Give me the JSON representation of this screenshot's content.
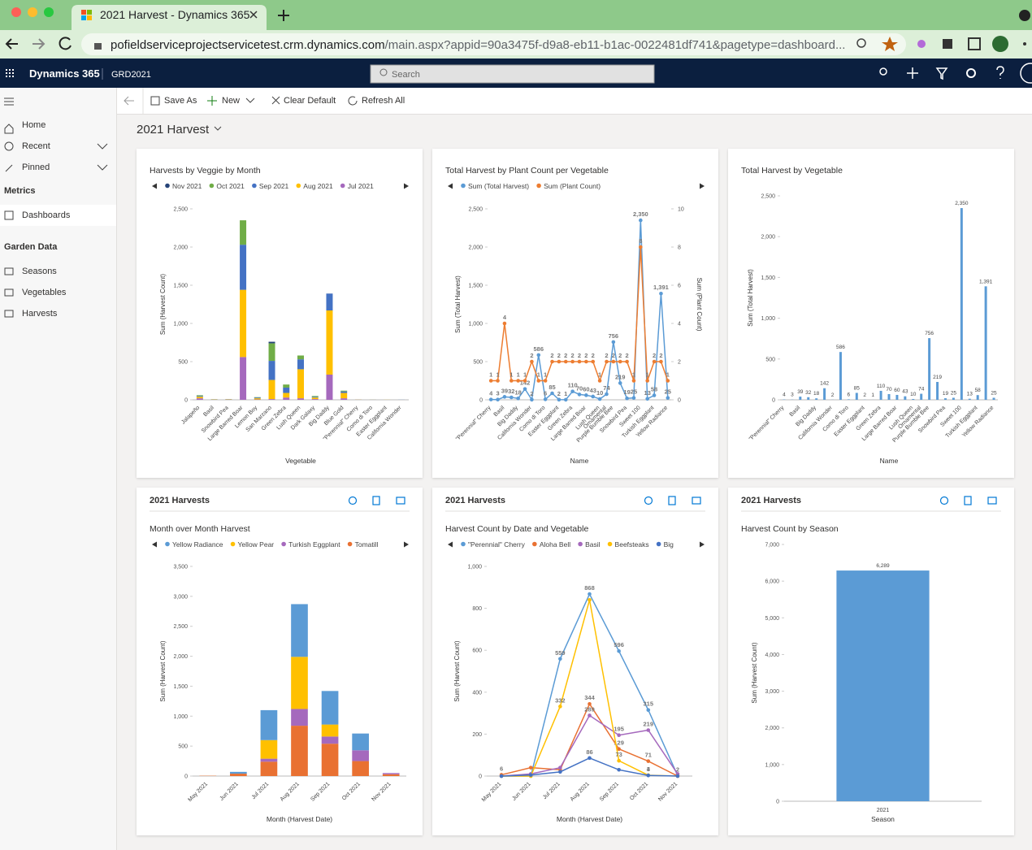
{
  "browser": {
    "tab_title": "2021 Harvest - Dynamics 365",
    "url_host": "pofieldserviceprojectservicetest.crm.dynamics.com",
    "url_path": "/main.aspx?appid=90a3475f-d9a8-eb11-b1ac-0022481df741&pagetype=dashboard..."
  },
  "app": {
    "name": "Dynamics 365",
    "environment": "GRD2021",
    "search_placeholder": "Search"
  },
  "sidebar": {
    "items": [
      "Home",
      "Recent",
      "Pinned"
    ],
    "sections": [
      {
        "title": "Metrics",
        "items": [
          "Dashboards"
        ]
      },
      {
        "title": "Garden Data",
        "items": [
          "Seasons",
          "Vegetables",
          "Harvests"
        ]
      }
    ]
  },
  "toolbar": {
    "buttons": [
      "Save As",
      "New",
      "Clear Default",
      "Refresh All"
    ]
  },
  "dashboard": {
    "title": "2021 Harvest"
  },
  "chart_data": [
    {
      "type": "bar",
      "stacked": true,
      "title": "Harvests by Veggie by Month",
      "xlabel": "Vegetable",
      "ylabel": "Sum (Harvest Count)",
      "categories": [
        "Jalapeño",
        "Basil",
        "Snowbird Pea",
        "Large Barred Boar",
        "Lemon Boy",
        "San Marzano",
        "Green Zebra",
        "Lush Queen",
        "Dark Galaxy",
        "Big Daddy",
        "Blue Gold",
        "\"Perennial\" Cherry",
        "Como di Toro",
        "Easter Eggplant",
        "California Wonder"
      ],
      "series": [
        {
          "name": "Nov 2021",
          "color": "#264478",
          "values": [
            0,
            0,
            0,
            0,
            0,
            20,
            0,
            0,
            0,
            1,
            0,
            0,
            0,
            0,
            0
          ]
        },
        {
          "name": "Oct 2021",
          "color": "#70ad47",
          "values": [
            10,
            1,
            1,
            320,
            5,
            230,
            40,
            50,
            10,
            0,
            10,
            0,
            0,
            0,
            0
          ]
        },
        {
          "name": "Sep 2021",
          "color": "#4472c4",
          "values": [
            10,
            2,
            2,
            590,
            10,
            250,
            70,
            130,
            10,
            220,
            20,
            1,
            1,
            0,
            1
          ]
        },
        {
          "name": "Aug 2021",
          "color": "#ffc000",
          "values": [
            20,
            3,
            4,
            880,
            15,
            250,
            60,
            380,
            20,
            840,
            70,
            2,
            1,
            1,
            0
          ]
        },
        {
          "name": "Jul 2021",
          "color": "#a569bd",
          "values": [
            20,
            2,
            3,
            560,
            5,
            10,
            30,
            20,
            10,
            330,
            20,
            1,
            0,
            0,
            0
          ]
        }
      ],
      "ylim": [
        0,
        2500
      ],
      "yticks": [
        0,
        500,
        {
          "value": 1000,
          "label": "1,000"
        },
        {
          "value": 1500,
          "label": "1,500"
        },
        {
          "value": 2000,
          "label": "2,000"
        },
        {
          "value": 2500,
          "label": "2,500"
        }
      ],
      "grid": false
    },
    {
      "type": "line",
      "title": "Total Harvest by Plant Count per Vegetable",
      "xlabel": "Name",
      "ylabel": "Sum (Total Harvest)",
      "y2label": "Sum (Plant Count)",
      "categories": [
        "\"Perennial\" Cherry",
        null,
        "Basil",
        null,
        "Big Daddy",
        null,
        "California Wonder",
        null,
        "Como di Toro",
        null,
        "Easter Eggplant",
        null,
        "Green Zebra",
        null,
        "Large Barred Boar",
        null,
        "Lush Queen",
        "Ornamental",
        "Purple Bumble Bee",
        null,
        "Snowbird Pea",
        null,
        "Sweet 100",
        null,
        "Turkish Eggplant",
        null,
        "Yellow Radiance"
      ],
      "series": [
        {
          "name": "Sum (Total Harvest)",
          "color": "#5b9bd5",
          "values": [
            4,
            3,
            39,
            32,
            18,
            142,
            2,
            586,
            6,
            85,
            2,
            1,
            110,
            70,
            60,
            43,
            10,
            74,
            756,
            219,
            19,
            25,
            2350,
            13,
            58,
            1391,
            25
          ],
          "value_labels": [
            "4",
            "3",
            "39",
            "32",
            "18",
            "142",
            "2",
            "586",
            "6",
            "85",
            "2",
            "1",
            "110",
            "70",
            "60",
            "43",
            "10",
            "74",
            "756",
            "219",
            "19",
            "25",
            "2,350",
            "13",
            "58",
            "1,391",
            "25"
          ]
        },
        {
          "name": "Sum (Plant Count)",
          "color": "#ed7d31",
          "axis": "y2",
          "values": [
            1,
            1,
            4,
            1,
            1,
            1,
            2,
            1,
            1,
            2,
            2,
            2,
            2,
            2,
            2,
            2,
            1,
            2,
            2,
            2,
            2,
            1,
            8,
            1,
            2,
            2,
            1
          ]
        }
      ],
      "ylim": [
        0,
        2500
      ],
      "yticks": [
        0,
        500,
        {
          "value": 1000,
          "label": "1,000"
        },
        {
          "value": 1500,
          "label": "1,500"
        },
        {
          "value": 2000,
          "label": "2,000"
        },
        {
          "value": 2500,
          "label": "2,500"
        }
      ],
      "y2lim": [
        0,
        10
      ],
      "y2ticks": [
        0,
        2,
        4,
        6,
        8,
        10
      ],
      "grid": false
    },
    {
      "type": "bar",
      "title": "Total Harvest by Vegetable",
      "xlabel": "Name",
      "ylabel": "Sum (Total Harvest)",
      "color": "#5b9bd5",
      "categories": [
        "\"Perennial\" Cherry",
        null,
        "Basil",
        null,
        "Big Daddy",
        null,
        "California Wonder",
        null,
        "Como di Toro",
        null,
        "Easter Eggplant",
        null,
        "Green Zebra",
        null,
        "Large Barred Boar",
        null,
        "Lush Queen",
        "Ornamental",
        "Purple Bumble Bee",
        null,
        "Snowbird Pea",
        null,
        "Sweet 100",
        null,
        "Turkish Eggplant",
        null,
        "Yellow Radiance"
      ],
      "values": [
        4,
        3,
        39,
        32,
        18,
        142,
        2,
        586,
        6,
        85,
        2,
        1,
        110,
        70,
        60,
        43,
        10,
        74,
        756,
        219,
        19,
        25,
        2350,
        13,
        58,
        1391,
        25
      ],
      "value_labels": [
        "4",
        "3",
        "39",
        "32",
        "18",
        "142",
        "2",
        "586",
        "6",
        "85",
        "2",
        "1",
        "110",
        "70",
        "60",
        "43",
        "10",
        "74",
        "756",
        "219",
        "19",
        "25",
        "2,350",
        "13",
        "58",
        "1,391",
        "25"
      ],
      "ylim": [
        0,
        2500
      ],
      "yticks": [
        0,
        500,
        {
          "value": 1000,
          "label": "1,000"
        },
        {
          "value": 1500,
          "label": "1,500"
        },
        {
          "value": 2000,
          "label": "2,000"
        },
        {
          "value": 2500,
          "label": "2,500"
        }
      ],
      "grid": false
    },
    {
      "type": "bar",
      "stacked": true,
      "header": "2021 Harvests",
      "title": "Month over Month Harvest",
      "xlabel": "Month (Harvest Date)",
      "ylabel": "Sum (Harvest Count)",
      "categories": [
        "May 2021",
        "Jun 2021",
        "Jul 2021",
        "Aug 2021",
        "Sep 2021",
        "Oct 2021",
        "Nov 2021"
      ],
      "series": [
        {
          "name": "Yellow Radiance",
          "color": "#5b9bd5",
          "values": [
            0,
            30,
            500,
            880,
            560,
            280,
            0
          ]
        },
        {
          "name": "Yellow Pear",
          "color": "#ffc000",
          "values": [
            0,
            0,
            310,
            870,
            200,
            0,
            0
          ]
        },
        {
          "name": "Turkish Eggplant",
          "color": "#a569bd",
          "values": [
            0,
            0,
            50,
            280,
            120,
            180,
            20
          ]
        },
        {
          "name": "Tomatill",
          "color": "#e97132",
          "values": [
            5,
            40,
            240,
            840,
            540,
            250,
            30
          ]
        }
      ],
      "ylim": [
        0,
        3500
      ],
      "yticks": [
        0,
        500,
        {
          "value": 1000,
          "label": "1,000"
        },
        {
          "value": 1500,
          "label": "1,500"
        },
        {
          "value": 2000,
          "label": "2,000"
        },
        {
          "value": 2500,
          "label": "2,500"
        },
        {
          "value": 3000,
          "label": "3,000"
        },
        {
          "value": 3500,
          "label": "3,500"
        }
      ],
      "grid": false
    },
    {
      "type": "line",
      "header": "2021 Harvests",
      "title": "Harvest Count by Date and Vegetable",
      "xlabel": "Month (Harvest Date)",
      "ylabel": "Sum (Harvest Count)",
      "categories": [
        "May 2021",
        "Jun 2021",
        "Jul 2021",
        "Aug 2021",
        "Sep 2021",
        "Oct 2021",
        "Nov 2021"
      ],
      "series": [
        {
          "name": "\"Perennial\" Cherry",
          "color": "#5b9bd5",
          "values": [
            0,
            0,
            559,
            868,
            596,
            315,
            2
          ],
          "value_labels": [
            null,
            null,
            "559",
            "868",
            "596",
            "315",
            "2"
          ]
        },
        {
          "name": "Aloha Bell",
          "color": "#e97132",
          "values": [
            6,
            40,
            30,
            344,
            129,
            71,
            0
          ],
          "value_labels": [
            "6",
            null,
            null,
            "344",
            "129",
            "71",
            null
          ]
        },
        {
          "name": "Basil",
          "color": "#a569bd",
          "values": [
            0,
            10,
            40,
            289,
            195,
            219,
            10
          ],
          "value_labels": [
            null,
            null,
            null,
            "289",
            "195",
            "219",
            null
          ]
        },
        {
          "name": "Beefsteaks",
          "color": "#ffc000",
          "values": [
            0,
            0,
            332,
            840,
            73,
            4,
            0
          ],
          "value_labels": [
            null,
            null,
            "332",
            null,
            "73",
            "4",
            null
          ]
        },
        {
          "name": "Big",
          "color": "#4472c4",
          "values": [
            0,
            5,
            20,
            86,
            30,
            3,
            0
          ],
          "value_labels": [
            null,
            null,
            null,
            "86",
            null,
            "3",
            null
          ]
        }
      ],
      "ylim": [
        0,
        1000
      ],
      "yticks": [
        0,
        200,
        400,
        600,
        800,
        {
          "value": 1000,
          "label": "1,000"
        }
      ],
      "grid": false
    },
    {
      "type": "bar",
      "header": "2021 Harvests",
      "title": "Harvest Count by Season",
      "xlabel": "Season",
      "ylabel": "Sum (Harvest Count)",
      "color": "#5b9bd5",
      "categories": [
        "2021"
      ],
      "values": [
        6289
      ],
      "value_labels": [
        "6,289"
      ],
      "ylim": [
        0,
        7000
      ],
      "yticks": [
        0,
        {
          "value": 1000,
          "label": "1,000"
        },
        {
          "value": 2000,
          "label": "2,000"
        },
        {
          "value": 3000,
          "label": "3,000"
        },
        {
          "value": 4000,
          "label": "4,000"
        },
        {
          "value": 5000,
          "label": "5,000"
        },
        {
          "value": 6000,
          "label": "6,000"
        },
        {
          "value": 7000,
          "label": "7,000"
        }
      ],
      "grid": false
    }
  ]
}
